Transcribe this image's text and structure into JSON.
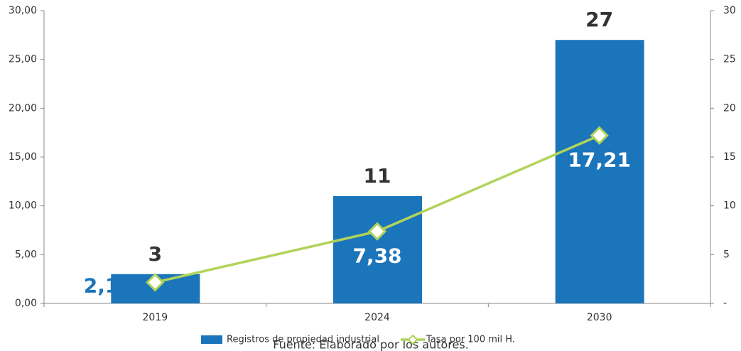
{
  "chart_data": {
    "type": "bar",
    "categories": [
      "2019",
      "2024",
      "2030"
    ],
    "series": [
      {
        "name": "Registros de propiedad industrial",
        "type": "bar",
        "color": "#1b75bb",
        "axis": "y2",
        "values": [
          3,
          11,
          27
        ]
      },
      {
        "name": "Tasa por 100 mil H.",
        "type": "line",
        "color": "#b2d35a",
        "values": [
          2.16,
          7.38,
          17.21
        ],
        "value_labels": [
          "2,16",
          "7,38",
          "17,21"
        ]
      }
    ],
    "ylim": [
      0,
      30
    ],
    "yticks": [
      {
        "value": 0,
        "label": "0,00"
      },
      {
        "value": 5,
        "label": "5,00"
      },
      {
        "value": 10,
        "label": "10,00"
      },
      {
        "value": 15,
        "label": "15,00"
      },
      {
        "value": 20,
        "label": "20,00"
      },
      {
        "value": 25,
        "label": "25,00"
      },
      {
        "value": 30,
        "label": "30,00"
      }
    ],
    "y2lim": [
      0,
      30
    ],
    "y2ticks": [
      {
        "value": 0,
        "label": "-"
      },
      5,
      10,
      15,
      20,
      25,
      30
    ],
    "legend": "bottom",
    "source": "Fuente: Elaborado por los autores."
  }
}
